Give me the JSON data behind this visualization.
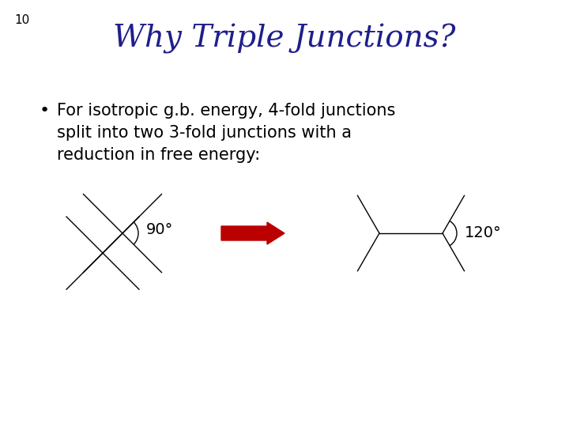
{
  "slide_number": "10",
  "title": "Why Triple Junctions?",
  "title_color": "#1F1F8B",
  "background_color": "#FFFFFF",
  "bullet_text": "For isotropic g.b. energy, 4-fold junctions\nsplit into two 3-fold junctions with a\nreduction in free energy:",
  "label_90": "90°",
  "label_120": "120°",
  "arrow_color": "#BB0000",
  "line_color": "#000000",
  "line_width": 1.0
}
